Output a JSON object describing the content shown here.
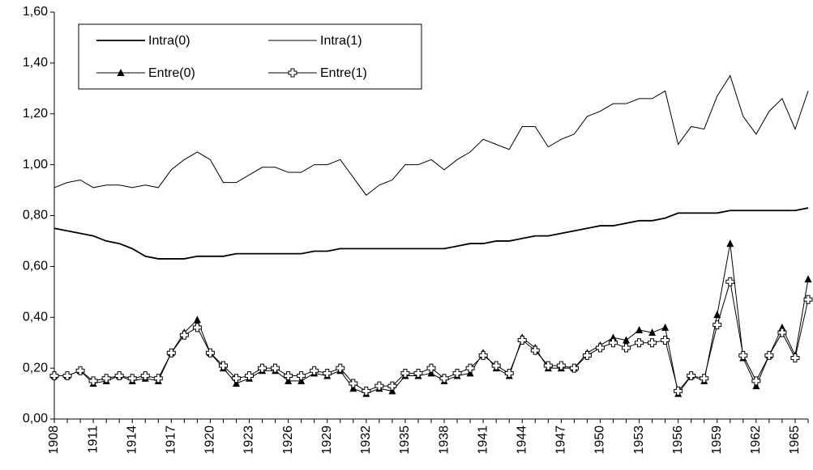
{
  "chart_data": {
    "type": "line",
    "categories": [
      "1908",
      null,
      null,
      "1911",
      null,
      null,
      "1914",
      null,
      null,
      "1917",
      null,
      null,
      "1920",
      null,
      null,
      "1923",
      null,
      null,
      "1926",
      null,
      null,
      "1929",
      null,
      null,
      "1932",
      null,
      null,
      "1935",
      null,
      null,
      "1938",
      null,
      null,
      "1941",
      null,
      null,
      "1944",
      null,
      null,
      "1947",
      null,
      null,
      "1950",
      null,
      null,
      "1953",
      null,
      null,
      "1956",
      null,
      null,
      "1959",
      null,
      null,
      "1962",
      null,
      null,
      "1965",
      null
    ],
    "series": [
      {
        "name": "Intra(0)",
        "color": "#000000",
        "marker": "none",
        "values": [
          0.75,
          0.74,
          0.73,
          0.72,
          0.7,
          0.69,
          0.67,
          0.64,
          0.63,
          0.63,
          0.63,
          0.64,
          0.64,
          0.64,
          0.65,
          0.65,
          0.65,
          0.65,
          0.65,
          0.65,
          0.66,
          0.66,
          0.67,
          0.67,
          0.67,
          0.67,
          0.67,
          0.67,
          0.67,
          0.67,
          0.67,
          0.68,
          0.69,
          0.69,
          0.7,
          0.7,
          0.71,
          0.72,
          0.72,
          0.73,
          0.74,
          0.75,
          0.76,
          0.76,
          0.77,
          0.78,
          0.78,
          0.79,
          0.81,
          0.81,
          0.81,
          0.81,
          0.82,
          0.82,
          0.82,
          0.82,
          0.82,
          0.82,
          0.83
        ]
      },
      {
        "name": "Intra(1)",
        "color": "#000000",
        "marker": "none",
        "values": [
          0.91,
          0.93,
          0.94,
          0.91,
          0.92,
          0.92,
          0.91,
          0.92,
          0.91,
          0.98,
          1.02,
          1.05,
          1.02,
          0.93,
          0.93,
          0.96,
          0.99,
          0.99,
          0.97,
          0.97,
          1.0,
          1.0,
          1.02,
          0.95,
          0.88,
          0.92,
          0.94,
          1.0,
          1.0,
          1.02,
          0.98,
          1.02,
          1.05,
          1.1,
          1.08,
          1.06,
          1.15,
          1.15,
          1.07,
          1.1,
          1.12,
          1.19,
          1.21,
          1.24,
          1.24,
          1.26,
          1.26,
          1.29,
          1.08,
          1.15,
          1.14,
          1.27,
          1.35,
          1.19,
          1.12,
          1.21,
          1.26,
          1.14,
          1.29
        ]
      },
      {
        "name": "Entre(0)",
        "color": "#000000",
        "marker": "triangle",
        "values": [
          0.17,
          0.17,
          0.19,
          0.14,
          0.15,
          0.17,
          0.15,
          0.16,
          0.15,
          0.26,
          0.34,
          0.39,
          0.26,
          0.2,
          0.14,
          0.16,
          0.19,
          0.19,
          0.15,
          0.15,
          0.18,
          0.17,
          0.19,
          0.12,
          0.1,
          0.12,
          0.11,
          0.17,
          0.17,
          0.18,
          0.15,
          0.17,
          0.18,
          0.26,
          0.2,
          0.17,
          0.32,
          0.28,
          0.2,
          0.2,
          0.2,
          0.26,
          0.29,
          0.32,
          0.31,
          0.35,
          0.34,
          0.36,
          0.1,
          0.17,
          0.15,
          0.41,
          0.69,
          0.24,
          0.13,
          0.25,
          0.36,
          0.25,
          0.55
        ]
      },
      {
        "name": "Entre(1)",
        "color": "#000000",
        "marker": "cross",
        "values": [
          0.17,
          0.17,
          0.19,
          0.15,
          0.16,
          0.17,
          0.16,
          0.17,
          0.16,
          0.26,
          0.33,
          0.36,
          0.26,
          0.21,
          0.16,
          0.17,
          0.2,
          0.2,
          0.17,
          0.17,
          0.19,
          0.18,
          0.2,
          0.14,
          0.11,
          0.13,
          0.13,
          0.18,
          0.18,
          0.2,
          0.16,
          0.18,
          0.2,
          0.25,
          0.21,
          0.18,
          0.31,
          0.27,
          0.21,
          0.21,
          0.2,
          0.25,
          0.28,
          0.3,
          0.28,
          0.3,
          0.3,
          0.31,
          0.11,
          0.17,
          0.16,
          0.37,
          0.54,
          0.25,
          0.15,
          0.25,
          0.34,
          0.24,
          0.47
        ]
      }
    ],
    "ylim": [
      0,
      1.6
    ],
    "yticks": [
      {
        "value": 0,
        "label": "0,00"
      },
      {
        "value": 0.2,
        "label": "0,20"
      },
      {
        "value": 0.4,
        "label": "0,40"
      },
      {
        "value": 0.6,
        "label": "0,60"
      },
      {
        "value": 0.8,
        "label": "0,80"
      },
      {
        "value": 1.0,
        "label": "1,00"
      },
      {
        "value": 1.2,
        "label": "1,20"
      },
      {
        "value": 1.4,
        "label": "1,40"
      },
      {
        "value": 1.6,
        "label": "1,60"
      }
    ],
    "grid": false,
    "legend": "top-left"
  }
}
